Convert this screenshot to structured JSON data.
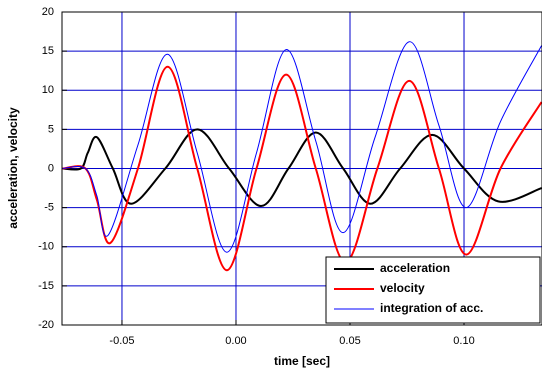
{
  "chart_data": {
    "type": "line",
    "xlabel": "time [sec]",
    "ylabel": "acceleration, velocity",
    "xlim": [
      -0.0763,
      0.1342
    ],
    "ylim": [
      -20,
      20
    ],
    "xticks": [
      -0.05,
      {
        "value": 0,
        "label": "0.00"
      },
      0.05,
      {
        "value": 0.1,
        "label": "0.10"
      }
    ],
    "yticks": [
      -20,
      -15,
      -10,
      -5,
      0,
      5,
      10,
      15,
      20
    ],
    "grid": true,
    "grid_color": "#0000cc",
    "legend": "lower right",
    "series": [
      {
        "name": "acceleration",
        "color": "#000000",
        "width": 2,
        "x": [
          -0.076,
          -0.068,
          -0.065,
          -0.061,
          -0.054,
          -0.046,
          -0.031,
          -0.017,
          -0.003,
          0.011,
          0.023,
          0.035,
          0.047,
          0.059,
          0.072,
          0.086,
          0.1,
          0.115,
          0.134
        ],
        "values": [
          0,
          0,
          2,
          4,
          0,
          -4.5,
          0,
          5,
          0,
          -4.8,
          0,
          4.6,
          0,
          -4.5,
          0,
          4.3,
          0,
          -4.2,
          -2.5
        ]
      },
      {
        "name": "velocity",
        "color": "#ff0000",
        "width": 2,
        "x": [
          -0.076,
          -0.066,
          -0.061,
          -0.055,
          -0.043,
          -0.03,
          -0.017,
          -0.004,
          0.009,
          0.022,
          0.035,
          0.048,
          0.062,
          0.076,
          0.089,
          0.101,
          0.116,
          0.134
        ],
        "values": [
          0,
          0,
          -4,
          -9.5,
          0,
          13,
          0,
          -13,
          0,
          12,
          0,
          -12,
          0,
          11.2,
          0,
          -11,
          0,
          8.5
        ]
      },
      {
        "name": "integration of acc.",
        "color": "#0000ff",
        "width": 1,
        "x": [
          -0.076,
          -0.066,
          -0.061,
          -0.056,
          -0.043,
          -0.03,
          -0.017,
          -0.004,
          0.009,
          0.022,
          0.035,
          0.047,
          0.061,
          0.076,
          0.089,
          0.101,
          0.116,
          0.134
        ],
        "values": [
          0,
          0,
          -3.5,
          -8.5,
          3,
          14.6,
          2,
          -10.7,
          2,
          15.2,
          3.5,
          -8.2,
          4,
          16.2,
          5.5,
          -5,
          6,
          15.7
        ]
      }
    ]
  }
}
